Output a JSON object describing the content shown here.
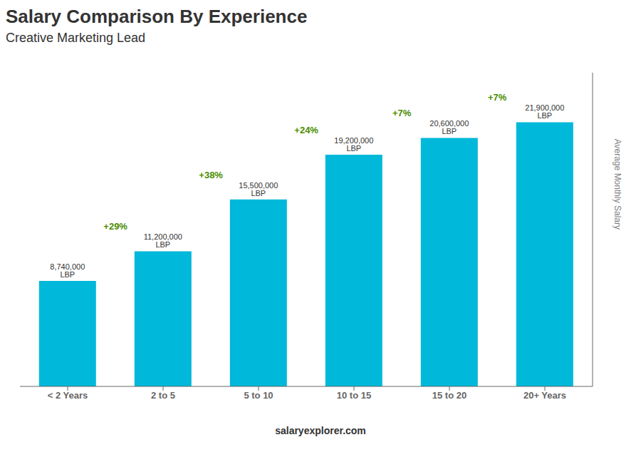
{
  "chart_data": {
    "type": "bar",
    "title": "Salary Comparison By Experience",
    "subtitle": "Creative Marketing Lead",
    "categories": [
      "< 2 Years",
      "2 to 5",
      "5 to 10",
      "10 to 15",
      "15 to 20",
      "20+ Years"
    ],
    "values": [
      8740000,
      11200000,
      15500000,
      19200000,
      20600000,
      21900000
    ],
    "value_labels": [
      "8,740,000 LBP",
      "11,200,000 LBP",
      "15,500,000 LBP",
      "19,200,000 LBP",
      "20,600,000 LBP",
      "21,900,000 LBP"
    ],
    "data_labels": true,
    "annotations": [
      "+29%",
      "+38%",
      "+24%",
      "+7%",
      "+7%"
    ],
    "ylabel": "Average Monthly Salary",
    "footer": "salaryexplorer.com",
    "color": "#00b8d9",
    "ylim": [
      0,
      26000000
    ],
    "tick_labels": "x",
    "grid": false
  }
}
